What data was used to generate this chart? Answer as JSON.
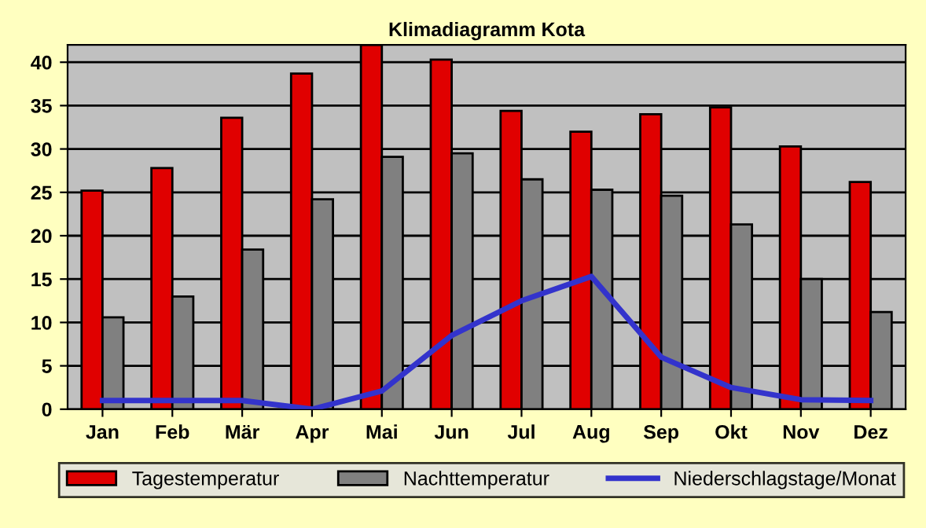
{
  "chart_data": {
    "type": "bar",
    "title": "Klimadiagramm Kota",
    "categories": [
      "Jan",
      "Feb",
      "Mär",
      "Apr",
      "Mai",
      "Jun",
      "Jul",
      "Aug",
      "Sep",
      "Okt",
      "Nov",
      "Dez"
    ],
    "series": [
      {
        "name": "Tagestemperatur",
        "color": "#e00000",
        "values": [
          25.2,
          27.8,
          33.6,
          38.7,
          42,
          40.3,
          34.4,
          32.0,
          34.0,
          34.8,
          30.3,
          26.2
        ]
      },
      {
        "name": "Nachttemperatur",
        "color": "#808080",
        "values": [
          10.6,
          13.0,
          18.4,
          24.2,
          29.1,
          29.5,
          26.5,
          25.3,
          24.6,
          21.3,
          15.0,
          11.2
        ]
      },
      {
        "name": "Niederschlagstage/Monat",
        "color": "#3333cc",
        "type": "line",
        "values": [
          1,
          1,
          1,
          0,
          2.1,
          8.5,
          12.5,
          15.3,
          6.0,
          2.5,
          1.1,
          1
        ]
      }
    ],
    "ylim": [
      0,
      42
    ],
    "yticks": [
      0,
      5,
      10,
      15,
      20,
      25,
      30,
      35,
      40
    ],
    "grid": "y",
    "legend": "bottom"
  }
}
